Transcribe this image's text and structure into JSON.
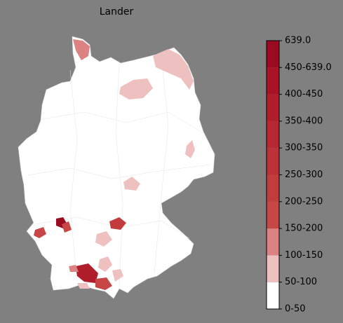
{
  "title": "Lander",
  "colorbar": {
    "labels": [
      "0-50",
      "50-100",
      "100-150",
      "150-200",
      "200-250",
      "250-300",
      "300-350",
      "350-400",
      "400-450",
      "450-639.0",
      "639.0"
    ],
    "colors": [
      "#ffffff",
      "#efc0c0",
      "#dc8282",
      "#c74646",
      "#c23c3e",
      "#bd3238",
      "#b82832",
      "#b01e2c",
      "#a81426",
      "#9b0a20"
    ]
  }
}
